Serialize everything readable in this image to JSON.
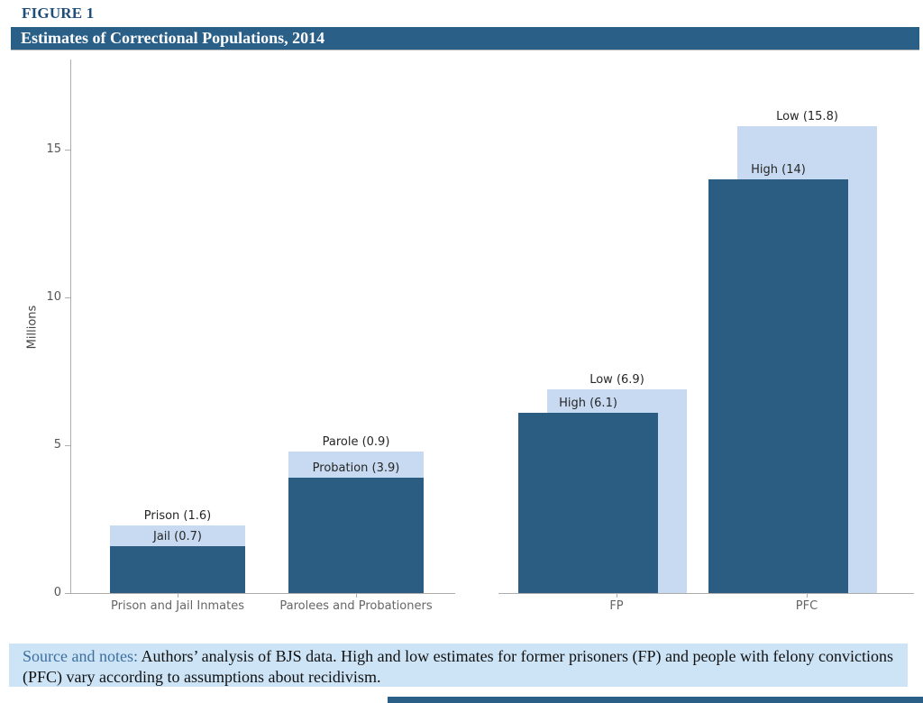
{
  "figure": {
    "label": "FIGURE 1",
    "title": "Estimates of Correctional Populations, 2014"
  },
  "chart_data": {
    "type": "bar",
    "title": "Estimates of Correctional Populations, 2014",
    "ylabel": "Millions",
    "xlabel": "",
    "ylim": [
      0,
      17.9
    ],
    "yticks": [
      0,
      5,
      10,
      15
    ],
    "grid": false,
    "legend": "none",
    "colors": {
      "dark_bar": "#2B5C82",
      "light_bar": "#C7DAF1"
    },
    "units": "millions of people",
    "panels": [
      {
        "groups": [
          {
            "category": "Prison and Jail Inmates",
            "style": "stacked",
            "segments": [
              {
                "label": "Prison",
                "value": 1.6
              },
              {
                "label": "Jail",
                "value": 0.7
              }
            ],
            "back_total": 2.3,
            "front_value": 1.6,
            "annotation_above": "Prison (1.6)",
            "annotation_front": "Jail (0.7)"
          },
          {
            "category": "Parolees and Probationers",
            "style": "stacked",
            "segments": [
              {
                "label": "Probation",
                "value": 3.9
              },
              {
                "label": "Parole",
                "value": 0.9
              }
            ],
            "back_total": 4.8,
            "front_value": 3.9,
            "annotation_above": "Parole (0.9)",
            "annotation_front": "Probation (3.9)"
          }
        ]
      },
      {
        "groups": [
          {
            "category": "FP",
            "style": "overlap",
            "segments": [
              {
                "label": "High",
                "value": 6.1
              },
              {
                "label": "Low",
                "value": 6.9
              }
            ],
            "back_total": 6.9,
            "front_value": 6.1,
            "annotation_above": "Low (6.9)",
            "annotation_front": "High (6.1)"
          },
          {
            "category": "PFC",
            "style": "overlap",
            "segments": [
              {
                "label": "High",
                "value": 14
              },
              {
                "label": "Low",
                "value": 15.8
              }
            ],
            "back_total": 15.8,
            "front_value": 14,
            "annotation_above": "Low (15.8)",
            "annotation_front": "High (14)"
          }
        ]
      }
    ]
  },
  "source_note": {
    "label": "Source and notes:",
    "text": " Authors’ analysis of BJS data. High and low estimates for former prisoners (FP) and people with felony convictions (PFC) vary according to assumptions about recidivism."
  }
}
